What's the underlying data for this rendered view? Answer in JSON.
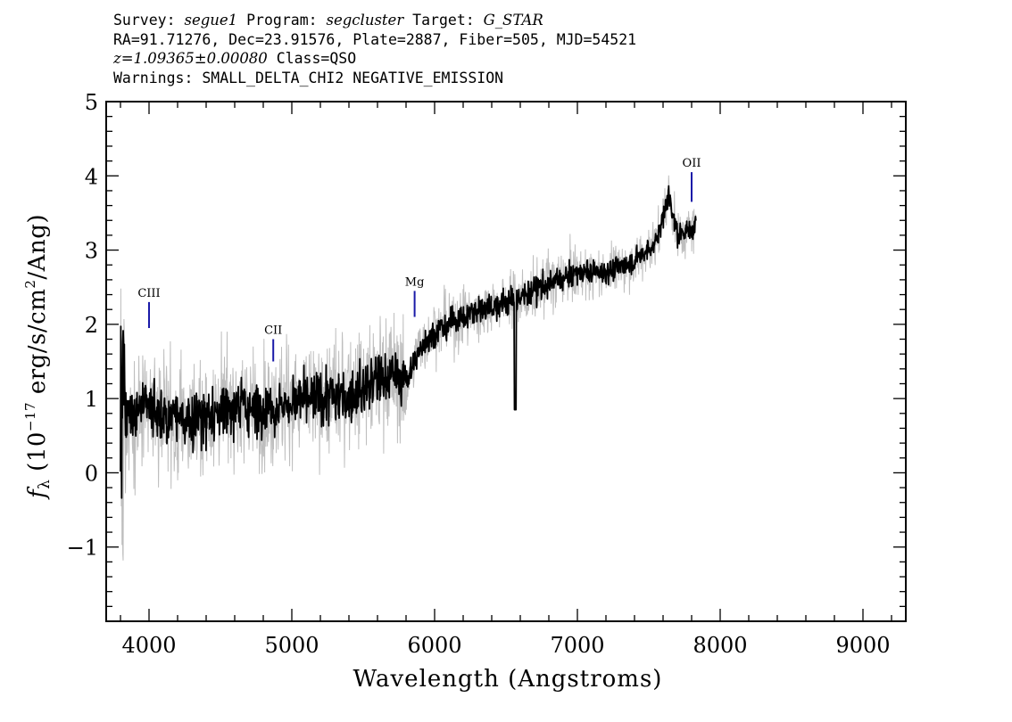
{
  "header": {
    "survey_label": "Survey: ",
    "survey": "segue1",
    "program_label": " Program: ",
    "program": "segcluster",
    "target_label": " Target: ",
    "target": "G_STAR",
    "line2": "RA=91.71276, Dec=23.91576, Plate=2887, Fiber=505, MJD=54521",
    "redshift": "z=1.09365±0.00080",
    "class": " Class=QSO",
    "warnings": "Warnings: SMALL_DELTA_CHI2 NEGATIVE_EMISSION"
  },
  "chart_data": {
    "type": "line",
    "xlabel": "Wavelength (Angstroms)",
    "ylabel_parts": {
      "f": "f",
      "sub": "λ",
      "open": " (10",
      "exp": "−17",
      "mid": " erg/s/cm",
      "sq": "2",
      "close": "/Ang)"
    },
    "xlim": [
      3700,
      9300
    ],
    "ylim": [
      -2,
      5
    ],
    "x_ticks": [
      4000,
      5000,
      6000,
      7000,
      8000,
      9000
    ],
    "x_tick_labels": [
      "4000",
      "5000",
      "6000",
      "7000",
      "8000",
      "9000"
    ],
    "y_ticks": [
      -1,
      0,
      1,
      2,
      3,
      4,
      5
    ],
    "y_tick_labels": [
      "−1",
      "0",
      "1",
      "2",
      "3",
      "4",
      "5"
    ],
    "series": [
      {
        "role": "flux",
        "color": "#000000",
        "x_range": [
          3800,
          7830
        ],
        "anchors": [
          [
            3800,
            0.5
          ],
          [
            3850,
            0.8
          ],
          [
            4000,
            0.85
          ],
          [
            4200,
            0.7
          ],
          [
            4400,
            0.75
          ],
          [
            4600,
            0.9
          ],
          [
            4800,
            0.85
          ],
          [
            5000,
            0.95
          ],
          [
            5200,
            1.0
          ],
          [
            5400,
            1.05
          ],
          [
            5600,
            1.25
          ],
          [
            5700,
            1.35
          ],
          [
            5800,
            1.2
          ],
          [
            5900,
            1.7
          ],
          [
            6000,
            1.9
          ],
          [
            6200,
            2.1
          ],
          [
            6400,
            2.25
          ],
          [
            6600,
            2.35
          ],
          [
            6800,
            2.55
          ],
          [
            7000,
            2.7
          ],
          [
            7200,
            2.7
          ],
          [
            7400,
            2.85
          ],
          [
            7550,
            3.1
          ],
          [
            7640,
            3.75
          ],
          [
            7700,
            3.2
          ],
          [
            7830,
            3.3
          ]
        ]
      },
      {
        "role": "error",
        "color": "#bebebe"
      }
    ],
    "emission_lines": [
      {
        "name": "CIII",
        "x": 4000,
        "y_top": 2.3,
        "y_bottom": 1.95,
        "color": "#1a1aa8"
      },
      {
        "name": "CII",
        "x": 4870,
        "y_top": 1.8,
        "y_bottom": 1.5,
        "color": "#1a1aa8"
      },
      {
        "name": "Mg",
        "x": 5860,
        "y_top": 2.45,
        "y_bottom": 2.1,
        "color": "#1a1aa8"
      },
      {
        "name": "OII",
        "x": 7800,
        "y_top": 4.05,
        "y_bottom": 3.65,
        "color": "#1a1aa8"
      }
    ]
  }
}
